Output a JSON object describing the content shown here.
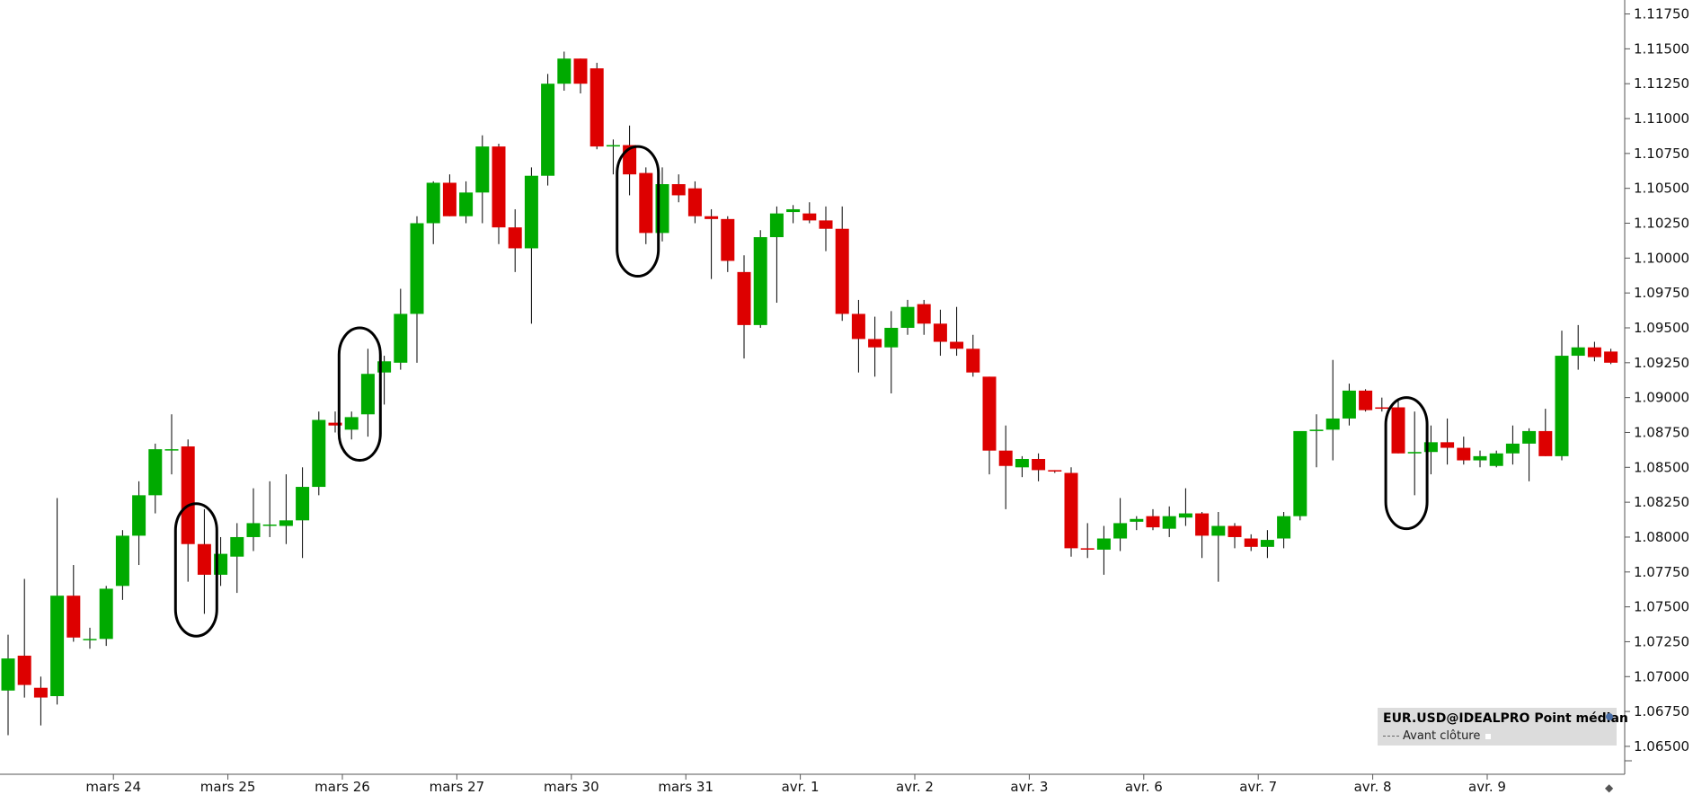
{
  "chart_data": {
    "type": "candlestick",
    "symbol_label": "EUR.USD@IDEALPRO Point médian",
    "legend_sub": "Avant clôture",
    "colors": {
      "up": "#00aa00",
      "down": "#dd0000",
      "wick": "#000000",
      "axis": "#555555",
      "annotation": "#000000"
    },
    "ylim": [
      1.063,
      1.1185
    ],
    "y_ticks": [
      "1.06500",
      "1.06750",
      "1.07000",
      "1.07250",
      "1.07500",
      "1.07750",
      "1.08000",
      "1.08250",
      "1.08500",
      "1.08750",
      "1.09000",
      "1.09250",
      "1.09500",
      "1.09750",
      "1.10000",
      "1.10250",
      "1.10500",
      "1.10750",
      "1.11000",
      "1.11250",
      "1.11500",
      "1.11750"
    ],
    "x_labels": [
      {
        "label": "mars 24",
        "bar": 6
      },
      {
        "label": "mars 25",
        "bar": 13
      },
      {
        "label": "mars 26",
        "bar": 20
      },
      {
        "label": "mars 27",
        "bar": 27
      },
      {
        "label": "mars 30",
        "bar": 34
      },
      {
        "label": "mars 31",
        "bar": 41
      },
      {
        "label": "avr. 1",
        "bar": 48
      },
      {
        "label": "avr. 2",
        "bar": 55
      },
      {
        "label": "avr. 3",
        "bar": 62
      },
      {
        "label": "avr. 6",
        "bar": 69
      },
      {
        "label": "avr. 7",
        "bar": 76
      },
      {
        "label": "avr. 8",
        "bar": 83
      },
      {
        "label": "avr. 9",
        "bar": 90
      }
    ],
    "candles": [
      {
        "o": 1.069,
        "h": 1.073,
        "l": 1.0658,
        "c": 1.0713
      },
      {
        "o": 1.0715,
        "h": 1.077,
        "l": 1.0685,
        "c": 1.0694
      },
      {
        "o": 1.0692,
        "h": 1.07,
        "l": 1.0665,
        "c": 1.0685
      },
      {
        "o": 1.0686,
        "h": 1.0828,
        "l": 1.068,
        "c": 1.0758
      },
      {
        "o": 1.0758,
        "h": 1.078,
        "l": 1.0725,
        "c": 1.0728
      },
      {
        "o": 1.0727,
        "h": 1.0735,
        "l": 1.072,
        "c": 1.0727
      },
      {
        "o": 1.0727,
        "h": 1.0765,
        "l": 1.0722,
        "c": 1.0763
      },
      {
        "o": 1.0765,
        "h": 1.0805,
        "l": 1.0755,
        "c": 1.0801
      },
      {
        "o": 1.0801,
        "h": 1.084,
        "l": 1.078,
        "c": 1.083
      },
      {
        "o": 1.083,
        "h": 1.0867,
        "l": 1.0817,
        "c": 1.0863
      },
      {
        "o": 1.0863,
        "h": 1.0888,
        "l": 1.0845,
        "c": 1.0863
      },
      {
        "o": 1.0865,
        "h": 1.087,
        "l": 1.0768,
        "c": 1.0795
      },
      {
        "o": 1.0795,
        "h": 1.082,
        "l": 1.0745,
        "c": 1.0773
      },
      {
        "o": 1.0773,
        "h": 1.08,
        "l": 1.0765,
        "c": 1.0788
      },
      {
        "o": 1.0786,
        "h": 1.081,
        "l": 1.076,
        "c": 1.08
      },
      {
        "o": 1.08,
        "h": 1.0835,
        "l": 1.079,
        "c": 1.081
      },
      {
        "o": 1.0809,
        "h": 1.084,
        "l": 1.08,
        "c": 1.0809
      },
      {
        "o": 1.0808,
        "h": 1.0845,
        "l": 1.0795,
        "c": 1.0812
      },
      {
        "o": 1.0812,
        "h": 1.085,
        "l": 1.0785,
        "c": 1.0836
      },
      {
        "o": 1.0836,
        "h": 1.089,
        "l": 1.083,
        "c": 1.0884
      },
      {
        "o": 1.0882,
        "h": 1.089,
        "l": 1.0875,
        "c": 1.088
      },
      {
        "o": 1.0877,
        "h": 1.089,
        "l": 1.087,
        "c": 1.0886
      },
      {
        "o": 1.0888,
        "h": 1.0935,
        "l": 1.0872,
        "c": 1.0917
      },
      {
        "o": 1.0918,
        "h": 1.093,
        "l": 1.0895,
        "c": 1.0926
      },
      {
        "o": 1.0925,
        "h": 1.0978,
        "l": 1.092,
        "c": 1.096
      },
      {
        "o": 1.096,
        "h": 1.103,
        "l": 1.0925,
        "c": 1.1025
      },
      {
        "o": 1.1025,
        "h": 1.1055,
        "l": 1.101,
        "c": 1.1054
      },
      {
        "o": 1.1054,
        "h": 1.106,
        "l": 1.103,
        "c": 1.103
      },
      {
        "o": 1.103,
        "h": 1.1055,
        "l": 1.1025,
        "c": 1.1047
      },
      {
        "o": 1.1047,
        "h": 1.1088,
        "l": 1.1025,
        "c": 1.108
      },
      {
        "o": 1.108,
        "h": 1.1082,
        "l": 1.101,
        "c": 1.1022
      },
      {
        "o": 1.1022,
        "h": 1.1035,
        "l": 1.099,
        "c": 1.1007
      },
      {
        "o": 1.1007,
        "h": 1.1065,
        "l": 1.0953,
        "c": 1.1059
      },
      {
        "o": 1.1059,
        "h": 1.1132,
        "l": 1.1052,
        "c": 1.1125
      },
      {
        "o": 1.1125,
        "h": 1.1148,
        "l": 1.112,
        "c": 1.1143
      },
      {
        "o": 1.1143,
        "h": 1.1143,
        "l": 1.1118,
        "c": 1.1125
      },
      {
        "o": 1.1136,
        "h": 1.114,
        "l": 1.1078,
        "c": 1.108
      },
      {
        "o": 1.108,
        "h": 1.1085,
        "l": 1.106,
        "c": 1.1081
      },
      {
        "o": 1.1081,
        "h": 1.1095,
        "l": 1.1045,
        "c": 1.106
      },
      {
        "o": 1.1061,
        "h": 1.1065,
        "l": 1.101,
        "c": 1.1018
      },
      {
        "o": 1.1018,
        "h": 1.1065,
        "l": 1.1012,
        "c": 1.1053
      },
      {
        "o": 1.1053,
        "h": 1.106,
        "l": 1.104,
        "c": 1.1045
      },
      {
        "o": 1.105,
        "h": 1.1055,
        "l": 1.1025,
        "c": 1.103
      },
      {
        "o": 1.103,
        "h": 1.1035,
        "l": 1.0985,
        "c": 1.1028
      },
      {
        "o": 1.1028,
        "h": 1.103,
        "l": 1.099,
        "c": 1.0998
      },
      {
        "o": 1.099,
        "h": 1.1002,
        "l": 1.0928,
        "c": 1.0952
      },
      {
        "o": 1.0952,
        "h": 1.102,
        "l": 1.095,
        "c": 1.1015
      },
      {
        "o": 1.1015,
        "h": 1.1037,
        "l": 1.0968,
        "c": 1.1032
      },
      {
        "o": 1.1033,
        "h": 1.1038,
        "l": 1.1025,
        "c": 1.1035
      },
      {
        "o": 1.1032,
        "h": 1.104,
        "l": 1.1025,
        "c": 1.1027
      },
      {
        "o": 1.1027,
        "h": 1.1037,
        "l": 1.1005,
        "c": 1.1021
      },
      {
        "o": 1.1021,
        "h": 1.1037,
        "l": 1.0955,
        "c": 1.096
      },
      {
        "o": 1.096,
        "h": 1.097,
        "l": 1.0918,
        "c": 1.0942
      },
      {
        "o": 1.0942,
        "h": 1.0958,
        "l": 1.0915,
        "c": 1.0936
      },
      {
        "o": 1.0936,
        "h": 1.0962,
        "l": 1.0903,
        "c": 1.095
      },
      {
        "o": 1.095,
        "h": 1.097,
        "l": 1.0945,
        "c": 1.0965
      },
      {
        "o": 1.0967,
        "h": 1.097,
        "l": 1.0945,
        "c": 1.0953
      },
      {
        "o": 1.0953,
        "h": 1.0963,
        "l": 1.093,
        "c": 1.094
      },
      {
        "o": 1.094,
        "h": 1.0965,
        "l": 1.093,
        "c": 1.0935
      },
      {
        "o": 1.0935,
        "h": 1.0945,
        "l": 1.0915,
        "c": 1.0918
      },
      {
        "o": 1.0915,
        "h": 1.0915,
        "l": 1.0845,
        "c": 1.0862
      },
      {
        "o": 1.0862,
        "h": 1.088,
        "l": 1.082,
        "c": 1.0851
      },
      {
        "o": 1.085,
        "h": 1.0858,
        "l": 1.0843,
        "c": 1.0856
      },
      {
        "o": 1.0856,
        "h": 1.086,
        "l": 1.084,
        "c": 1.0848
      },
      {
        "o": 1.0848,
        "h": 1.0848,
        "l": 1.0846,
        "c": 1.0847
      },
      {
        "o": 1.0846,
        "h": 1.085,
        "l": 1.0786,
        "c": 1.0792
      },
      {
        "o": 1.0792,
        "h": 1.081,
        "l": 1.0785,
        "c": 1.0791
      },
      {
        "o": 1.0791,
        "h": 1.0808,
        "l": 1.0773,
        "c": 1.0799
      },
      {
        "o": 1.0799,
        "h": 1.0828,
        "l": 1.079,
        "c": 1.081
      },
      {
        "o": 1.0811,
        "h": 1.0815,
        "l": 1.0805,
        "c": 1.0813
      },
      {
        "o": 1.0815,
        "h": 1.082,
        "l": 1.0805,
        "c": 1.0807
      },
      {
        "o": 1.0806,
        "h": 1.0822,
        "l": 1.08,
        "c": 1.0815
      },
      {
        "o": 1.0814,
        "h": 1.0835,
        "l": 1.0808,
        "c": 1.0817
      },
      {
        "o": 1.0817,
        "h": 1.0818,
        "l": 1.0785,
        "c": 1.0801
      },
      {
        "o": 1.0801,
        "h": 1.0818,
        "l": 1.0768,
        "c": 1.0808
      },
      {
        "o": 1.0808,
        "h": 1.081,
        "l": 1.0792,
        "c": 1.08
      },
      {
        "o": 1.0799,
        "h": 1.0802,
        "l": 1.079,
        "c": 1.0793
      },
      {
        "o": 1.0793,
        "h": 1.0805,
        "l": 1.0785,
        "c": 1.0798
      },
      {
        "o": 1.0799,
        "h": 1.0818,
        "l": 1.0792,
        "c": 1.0815
      },
      {
        "o": 1.0815,
        "h": 1.0875,
        "l": 1.0812,
        "c": 1.0876
      },
      {
        "o": 1.0876,
        "h": 1.0888,
        "l": 1.085,
        "c": 1.0877
      },
      {
        "o": 1.0877,
        "h": 1.0927,
        "l": 1.0855,
        "c": 1.0885
      },
      {
        "o": 1.0885,
        "h": 1.091,
        "l": 1.088,
        "c": 1.0905
      },
      {
        "o": 1.0905,
        "h": 1.0906,
        "l": 1.089,
        "c": 1.0891
      },
      {
        "o": 1.0893,
        "h": 1.09,
        "l": 1.089,
        "c": 1.0892
      },
      {
        "o": 1.0893,
        "h": 1.0898,
        "l": 1.086,
        "c": 1.086
      },
      {
        "o": 1.086,
        "h": 1.089,
        "l": 1.083,
        "c": 1.0861
      },
      {
        "o": 1.0861,
        "h": 1.088,
        "l": 1.0845,
        "c": 1.0868
      },
      {
        "o": 1.0868,
        "h": 1.0885,
        "l": 1.0852,
        "c": 1.0864
      },
      {
        "o": 1.0864,
        "h": 1.0872,
        "l": 1.0852,
        "c": 1.0855
      },
      {
        "o": 1.0855,
        "h": 1.0862,
        "l": 1.085,
        "c": 1.0858
      },
      {
        "o": 1.0851,
        "h": 1.0862,
        "l": 1.085,
        "c": 1.086
      },
      {
        "o": 1.086,
        "h": 1.088,
        "l": 1.0852,
        "c": 1.0867
      },
      {
        "o": 1.0867,
        "h": 1.0878,
        "l": 1.084,
        "c": 1.0876
      },
      {
        "o": 1.0876,
        "h": 1.0892,
        "l": 1.0858,
        "c": 1.0858
      },
      {
        "o": 1.0858,
        "h": 1.0948,
        "l": 1.0855,
        "c": 1.093
      },
      {
        "o": 1.093,
        "h": 1.0952,
        "l": 1.092,
        "c": 1.0936
      },
      {
        "o": 1.0936,
        "h": 1.094,
        "l": 1.0926,
        "c": 1.0929
      },
      {
        "o": 1.0933,
        "h": 1.0935,
        "l": 1.0924,
        "c": 1.0925
      }
    ],
    "annotations": [
      {
        "type": "ellipse",
        "bar_from": 11,
        "bar_to": 12,
        "y_top": 1.0824,
        "y_bottom": 1.0729
      },
      {
        "type": "ellipse",
        "bar_from": 21,
        "bar_to": 22,
        "y_top": 1.095,
        "y_bottom": 1.0855
      },
      {
        "type": "ellipse",
        "bar_from": 38,
        "bar_to": 39,
        "y_top": 1.108,
        "y_bottom": 1.0987
      },
      {
        "type": "ellipse",
        "bar_from": 85,
        "bar_to": 86,
        "y_top": 1.09,
        "y_bottom": 1.0806
      }
    ]
  }
}
